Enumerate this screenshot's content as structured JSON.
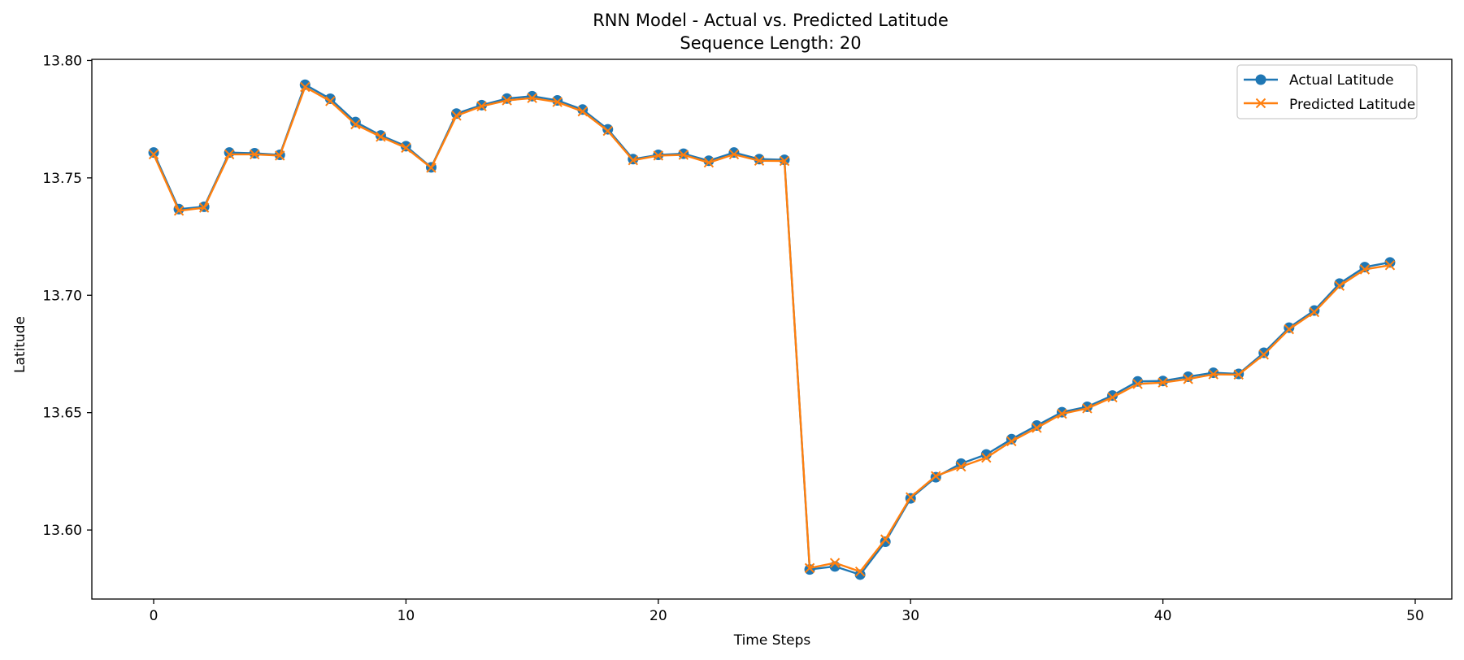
{
  "chart_data": {
    "type": "line",
    "title": "RNN Model - Actual vs. Predicted Latitude",
    "subtitle": "Sequence Length: 20",
    "xlabel": "Time Steps",
    "ylabel": "Latitude",
    "xlim": [
      -2.45,
      51.45
    ],
    "ylim": [
      13.5706,
      13.8005
    ],
    "xticks": [
      0,
      10,
      20,
      30,
      40,
      50
    ],
    "xtick_labels": [
      "0",
      "10",
      "20",
      "30",
      "40",
      "50"
    ],
    "yticks": [
      13.6,
      13.65,
      13.7,
      13.75,
      13.8
    ],
    "ytick_labels": [
      "13.60",
      "13.65",
      "13.70",
      "13.75",
      "13.80"
    ],
    "grid": false,
    "legend_position": "top-right",
    "x": [
      0,
      1,
      2,
      3,
      4,
      5,
      6,
      7,
      8,
      9,
      10,
      11,
      12,
      13,
      14,
      15,
      16,
      17,
      18,
      19,
      20,
      21,
      22,
      23,
      24,
      25,
      26,
      27,
      28,
      29,
      30,
      31,
      32,
      33,
      34,
      35,
      36,
      37,
      38,
      39,
      40,
      41,
      42,
      43,
      44,
      45,
      46,
      47,
      48,
      49
    ],
    "series": [
      {
        "name": "Actual Latitude",
        "color": "#1f77b4",
        "marker": "circle",
        "values": [
          13.7608,
          13.7367,
          13.7377,
          13.7608,
          13.7605,
          13.7598,
          13.7897,
          13.7837,
          13.7738,
          13.7681,
          13.7635,
          13.7545,
          13.7774,
          13.781,
          13.7838,
          13.7848,
          13.783,
          13.7791,
          13.7707,
          13.758,
          13.7598,
          13.7603,
          13.7573,
          13.7608,
          13.758,
          13.7577,
          13.5832,
          13.5845,
          13.581,
          13.595,
          13.6135,
          13.6225,
          13.6283,
          13.6322,
          13.6387,
          13.6445,
          13.6502,
          13.6525,
          13.6573,
          13.6633,
          13.6635,
          13.6653,
          13.667,
          13.6665,
          13.6755,
          13.6862,
          13.6935,
          13.705,
          13.712,
          13.714
        ]
      },
      {
        "name": "Predicted Latitude",
        "color": "#ff7f0e",
        "marker": "x",
        "values": [
          13.76,
          13.736,
          13.7373,
          13.76,
          13.76,
          13.7595,
          13.7887,
          13.7827,
          13.7728,
          13.7675,
          13.7628,
          13.7543,
          13.7765,
          13.7805,
          13.783,
          13.784,
          13.7823,
          13.7783,
          13.77,
          13.7575,
          13.7595,
          13.7598,
          13.7565,
          13.76,
          13.7573,
          13.7572,
          13.5838,
          13.586,
          13.5823,
          13.596,
          13.614,
          13.623,
          13.627,
          13.6308,
          13.6378,
          13.6435,
          13.6495,
          13.6518,
          13.6565,
          13.6622,
          13.6628,
          13.6643,
          13.6663,
          13.6662,
          13.6747,
          13.6855,
          13.6928,
          13.704,
          13.711,
          13.7128
        ]
      }
    ]
  }
}
